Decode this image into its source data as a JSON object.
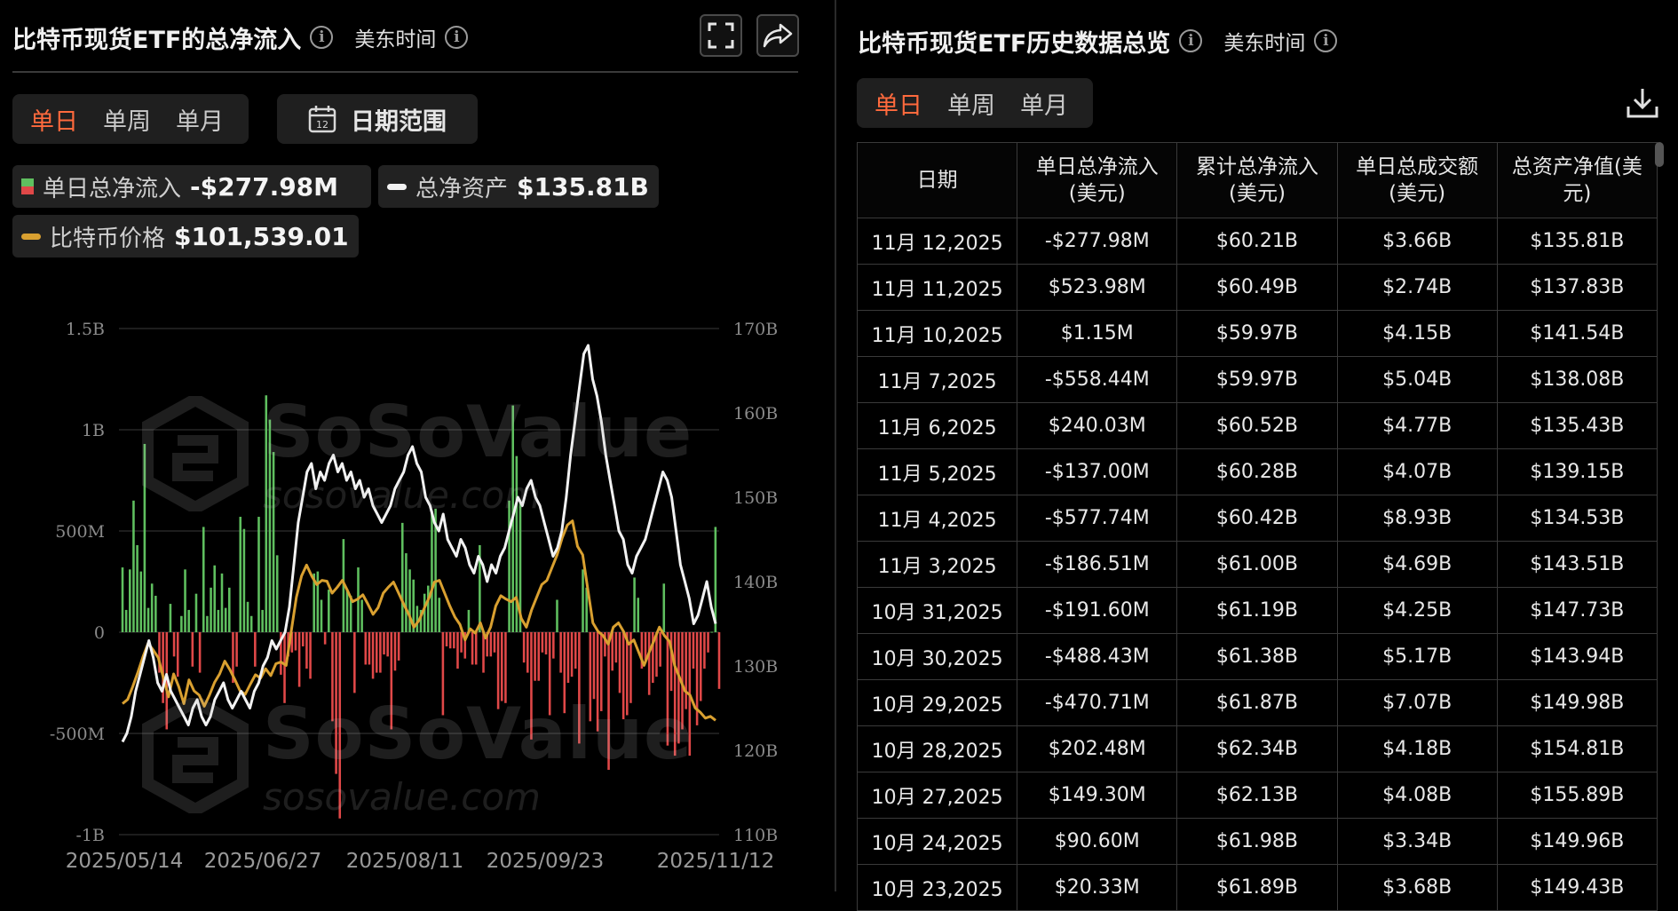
{
  "left": {
    "title": "比特币现货ETF的总净流入",
    "timezone": "美东时间",
    "tabs": [
      {
        "label": "单日",
        "active": true
      },
      {
        "label": "单周",
        "active": false
      },
      {
        "label": "单月",
        "active": false
      }
    ],
    "date_range_label": "日期范围",
    "calendar_day": "12",
    "legend": {
      "flow_label": "单日总净流入",
      "flow_value": "-$277.98M",
      "assets_label": "总净资产",
      "assets_value": "$135.81B",
      "price_label": "比特币价格",
      "price_value": "$101,539.01"
    }
  },
  "watermark": {
    "brand": "SoSoValue",
    "site": "sosovalue.com"
  },
  "right": {
    "title": "比特币现货ETF历史数据总览",
    "timezone": "美东时间",
    "tabs": [
      {
        "label": "单日",
        "active": true
      },
      {
        "label": "单周",
        "active": false
      },
      {
        "label": "单月",
        "active": false
      }
    ],
    "columns": [
      {
        "line1": "日期",
        "line2": ""
      },
      {
        "line1": "单日总净流入",
        "line2": "(美元)"
      },
      {
        "line1": "累计总净流入",
        "line2": "(美元)"
      },
      {
        "line1": "单日总成交额",
        "line2": "(美元)"
      },
      {
        "line1": "总资产净值(美",
        "line2": "元)"
      }
    ],
    "rows": [
      [
        "11月 12,2025",
        "-$277.98M",
        "$60.21B",
        "$3.66B",
        "$135.81B"
      ],
      [
        "11月 11,2025",
        "$523.98M",
        "$60.49B",
        "$2.74B",
        "$137.83B"
      ],
      [
        "11月 10,2025",
        "$1.15M",
        "$59.97B",
        "$4.15B",
        "$141.54B"
      ],
      [
        "11月 7,2025",
        "-$558.44M",
        "$59.97B",
        "$5.04B",
        "$138.08B"
      ],
      [
        "11月 6,2025",
        "$240.03M",
        "$60.52B",
        "$4.77B",
        "$135.43B"
      ],
      [
        "11月 5,2025",
        "-$137.00M",
        "$60.28B",
        "$4.07B",
        "$139.15B"
      ],
      [
        "11月 4,2025",
        "-$577.74M",
        "$60.42B",
        "$8.93B",
        "$134.53B"
      ],
      [
        "11月 3,2025",
        "-$186.51M",
        "$61.00B",
        "$4.69B",
        "$143.51B"
      ],
      [
        "10月 31,2025",
        "-$191.60M",
        "$61.19B",
        "$4.25B",
        "$147.73B"
      ],
      [
        "10月 30,2025",
        "-$488.43M",
        "$61.38B",
        "$5.17B",
        "$143.94B"
      ],
      [
        "10月 29,2025",
        "-$470.71M",
        "$61.87B",
        "$7.07B",
        "$149.98B"
      ],
      [
        "10月 28,2025",
        "$202.48M",
        "$62.34B",
        "$4.18B",
        "$154.81B"
      ],
      [
        "10月 27,2025",
        "$149.30M",
        "$62.13B",
        "$4.08B",
        "$155.89B"
      ],
      [
        "10月 24,2025",
        "$90.60M",
        "$61.98B",
        "$3.34B",
        "$149.96B"
      ],
      [
        "10月 23,2025",
        "$20.33M",
        "$61.89B",
        "$3.68B",
        "$149.43B"
      ]
    ]
  },
  "colors": {
    "background": "#000000",
    "inflow": "#5fbf5f",
    "outflow": "#e04848",
    "assets_line": "#f2f2f2",
    "price_line": "#d9a030",
    "active_tab": "#ff6a3d"
  },
  "chart_data": {
    "type": "bar",
    "x_start": "2025/05/14",
    "x_end": "2025/11/12",
    "x_tick_labels": [
      "2025/05/14",
      "2025/06/27",
      "2025/08/11",
      "2025/09/23",
      "2025/11/12"
    ],
    "y_left_ticks": [
      "1.5B",
      "1B",
      "500M",
      "0",
      "-500M",
      "-1B"
    ],
    "y_left_values": [
      1500,
      1000,
      500,
      0,
      -500,
      -1000
    ],
    "y_left_range_musd": [
      -1000,
      1500
    ],
    "y_right_ticks": [
      "170B",
      "160B",
      "150B",
      "140B",
      "130B",
      "120B",
      "110B"
    ],
    "y_right_values": [
      170,
      160,
      150,
      140,
      130,
      120,
      110
    ],
    "y_right_range_busd": [
      110,
      170
    ],
    "grid": true,
    "series": [
      {
        "name": "单日总净流入",
        "kind": "bar",
        "unit": "M USD",
        "values": [
          320,
          110,
          310,
          650,
          430,
          300,
          930,
          120,
          240,
          180,
          -200,
          -350,
          -480,
          140,
          -120,
          -220,
          80,
          310,
          110,
          -170,
          190,
          -200,
          520,
          80,
          220,
          330,
          110,
          290,
          120,
          220,
          -250,
          -170,
          570,
          510,
          150,
          80,
          -170,
          570,
          110,
          1170,
          1050,
          890,
          380,
          -210,
          -350,
          -120,
          -100,
          -90,
          -270,
          -70,
          -180,
          -230,
          290,
          300,
          160,
          -60,
          210,
          -440,
          -700,
          -920,
          460,
          210,
          180,
          -300,
          320,
          160,
          -160,
          -160,
          -230,
          -200,
          -200,
          -110,
          -120,
          -480,
          -190,
          -140,
          540,
          390,
          310,
          260,
          130,
          110,
          190,
          230,
          600,
          610,
          170,
          -410,
          -70,
          -80,
          -80,
          -180,
          -100,
          -130,
          110,
          -160,
          -160,
          430,
          -200,
          -120,
          -120,
          -100,
          -380,
          -340,
          -350,
          650,
          1120,
          870,
          650,
          -150,
          -200,
          -530,
          -240,
          -240,
          -100,
          -110,
          -410,
          -130,
          160,
          -200,
          -400,
          -250,
          -220,
          -180,
          -550,
          310,
          220,
          -440,
          -330,
          -490,
          -390,
          -120,
          -680,
          -190,
          -150,
          -300,
          -430,
          -410,
          -350,
          270,
          170,
          -180,
          -140,
          -310,
          -250,
          -220,
          -170,
          240,
          -560,
          -290,
          -610,
          -550,
          -480,
          -380,
          -610,
          -180,
          -460,
          -340,
          -180,
          -100,
          2,
          520,
          -280
        ]
      },
      {
        "name": "总净资产",
        "kind": "line",
        "unit": "B USD",
        "values": [
          121,
          122,
          124,
          127,
          129,
          131,
          133,
          131,
          128,
          127,
          129,
          127,
          126,
          125,
          124,
          123,
          125,
          126,
          124,
          123,
          124,
          126,
          127,
          128,
          126,
          125,
          126,
          127,
          126,
          125,
          127,
          128,
          130,
          131,
          133,
          132,
          133,
          134,
          137,
          142,
          147,
          150,
          153,
          154,
          151,
          153,
          152,
          154,
          155,
          153,
          154,
          152,
          153,
          151,
          152,
          150,
          151,
          149,
          148,
          147,
          148,
          149,
          151,
          152,
          153,
          155,
          156,
          154,
          153,
          150,
          149,
          147,
          146,
          148,
          145,
          144,
          143,
          145,
          144,
          142,
          141,
          143,
          142,
          140,
          142,
          141,
          143,
          144,
          146,
          148,
          150,
          149,
          151,
          152,
          150,
          149,
          147,
          145,
          143,
          144,
          146,
          150,
          155,
          159,
          163,
          167,
          168,
          164,
          162,
          159,
          155,
          152,
          149,
          146,
          145,
          142,
          141,
          143,
          144,
          145,
          147,
          149,
          151,
          153,
          152,
          150,
          146,
          142,
          140,
          138,
          135,
          136,
          138,
          140,
          137,
          135
        ]
      },
      {
        "name": "比特币价格",
        "kind": "line",
        "unit": "USD",
        "values": [
          103500,
          104000,
          105500,
          107200,
          109000,
          110600,
          109800,
          108900,
          106500,
          104300,
          107000,
          105500,
          103500,
          106300,
          105000,
          104500,
          103200,
          104500,
          106000,
          107000,
          108500,
          107500,
          106300,
          105000,
          104600,
          105800,
          106900,
          106500,
          107600,
          106800,
          108200,
          108400,
          108000,
          112000,
          116000,
          118500,
          119800,
          118500,
          117500,
          118000,
          117900,
          116500,
          117200,
          118000,
          116800,
          115500,
          115800,
          116300,
          115200,
          114000,
          114800,
          116500,
          117200,
          117800,
          116500,
          115200,
          114000,
          112500,
          113300,
          114700,
          116000,
          117800,
          118000,
          116500,
          115000,
          113700,
          112800,
          111000,
          112300,
          111800,
          113000,
          111200,
          112500,
          115000,
          116200,
          115800,
          115500,
          116000,
          113500,
          112500,
          114500,
          116000,
          117500,
          118000,
          119500,
          121000,
          123000,
          124500,
          125000,
          122000,
          121000,
          117000,
          113000,
          112000,
          111500,
          110500,
          112500,
          113000,
          112000,
          110500,
          111000,
          109500,
          108000,
          109500,
          111000,
          112500,
          111500,
          110800,
          108000,
          106500,
          105000,
          104500,
          103000,
          102500,
          101800,
          102000,
          101539
        ]
      }
    ]
  }
}
